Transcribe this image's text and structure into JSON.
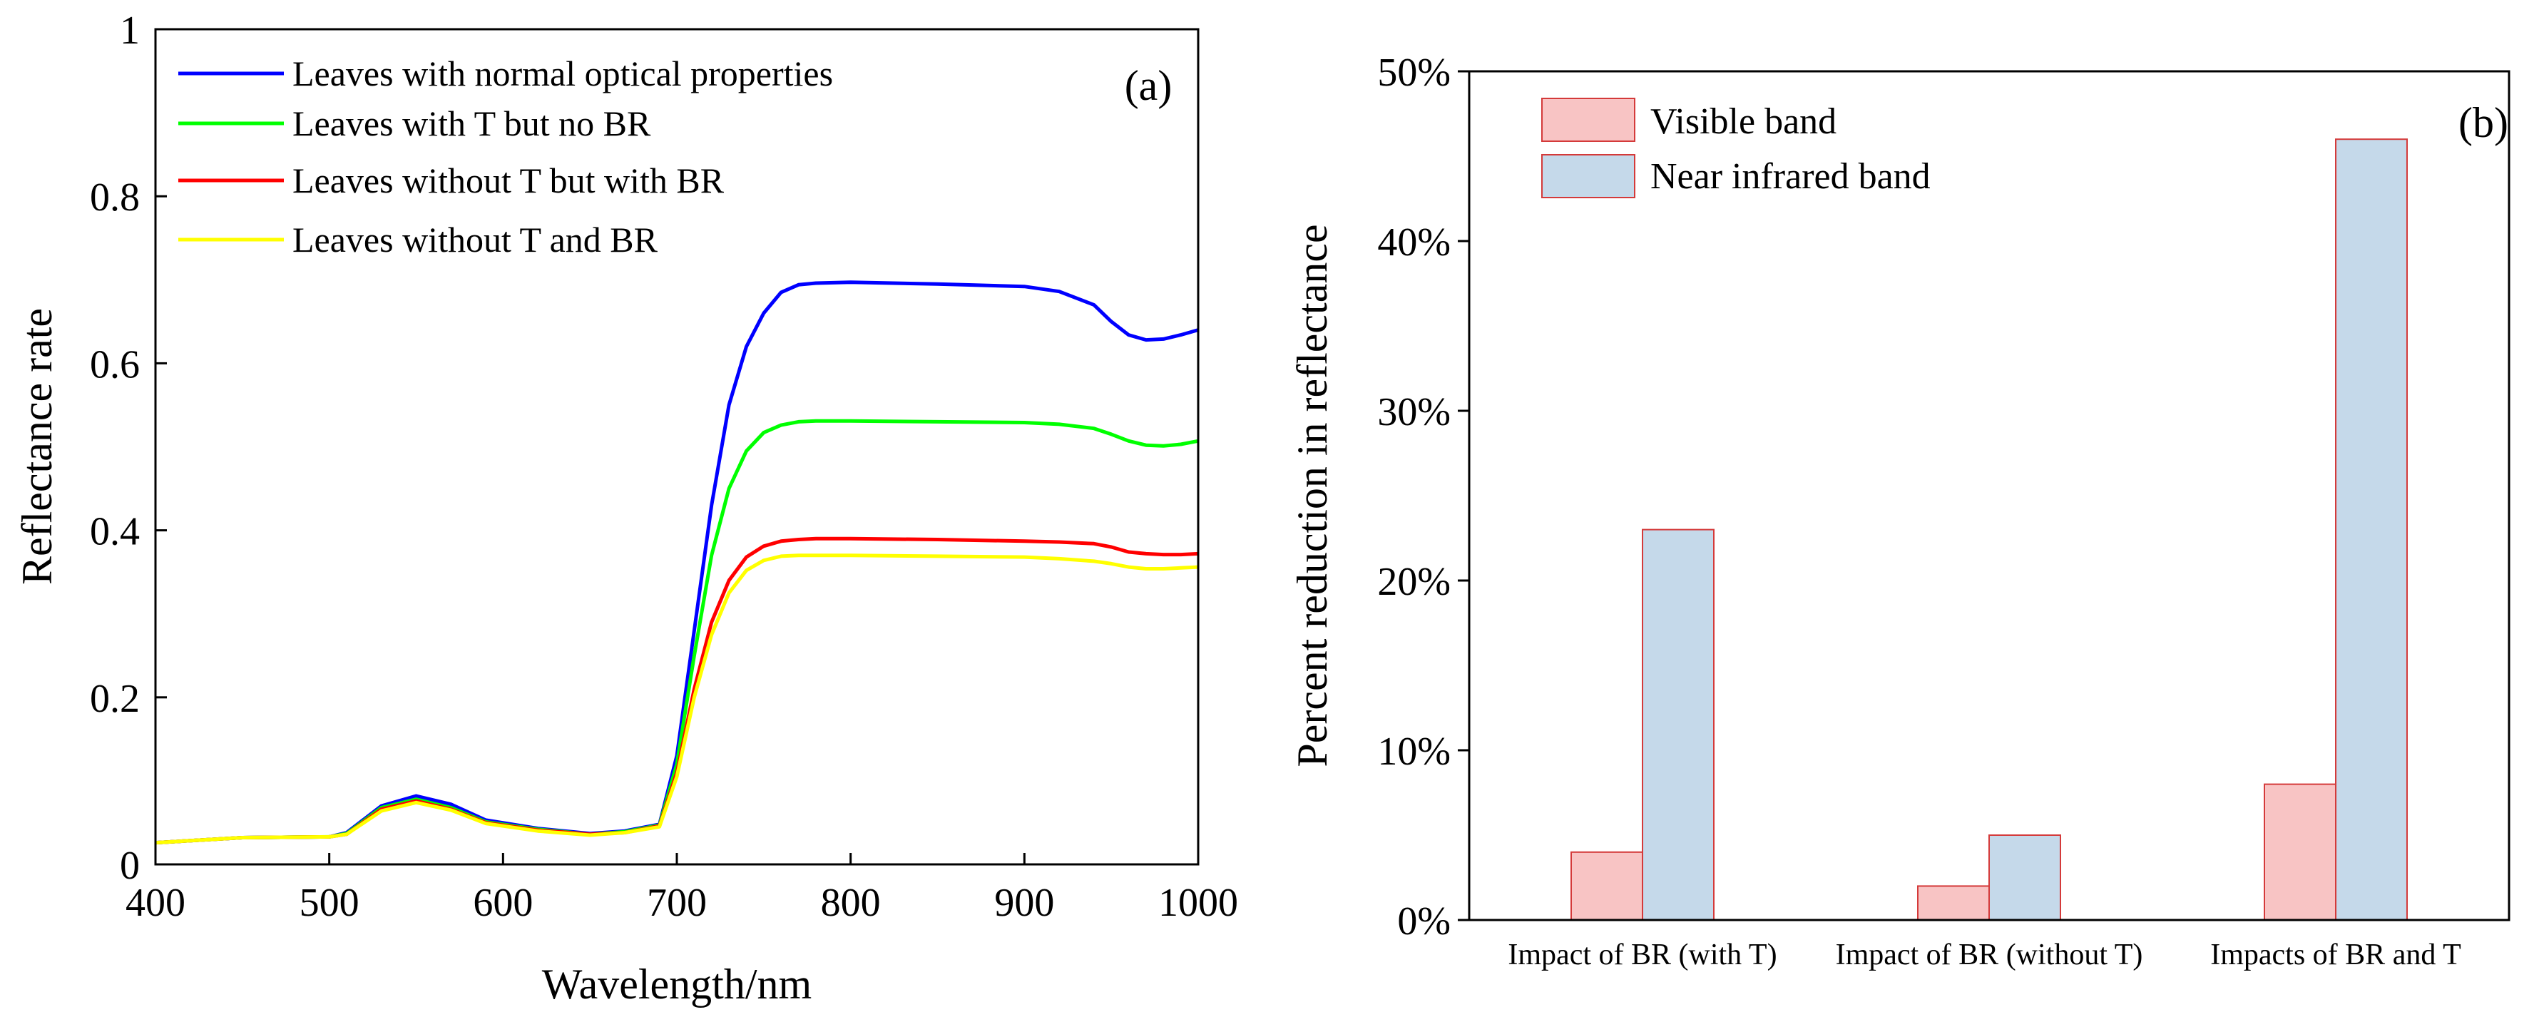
{
  "chart_data": [
    {
      "type": "line",
      "panel_label": "(a)",
      "title": "",
      "xlabel": "Wavelength/nm",
      "ylabel": "Reflectance rate",
      "xlim": [
        400,
        1000
      ],
      "ylim": [
        0,
        1
      ],
      "xticks": [
        400,
        500,
        600,
        700,
        800,
        900,
        1000
      ],
      "xtick_labels": [
        "400",
        "500",
        "600",
        "700",
        "800",
        "900",
        "1000"
      ],
      "yticks": [
        0,
        0.2,
        0.4,
        0.6,
        0.8,
        1
      ],
      "ytick_labels": [
        "0",
        "0.2",
        "0.4",
        "0.6",
        "0.8",
        "1"
      ],
      "grid": false,
      "legend_position": "top-left",
      "x": [
        400,
        450,
        500,
        510,
        530,
        550,
        570,
        590,
        620,
        650,
        670,
        690,
        700,
        710,
        720,
        730,
        740,
        750,
        760,
        770,
        780,
        800,
        850,
        900,
        920,
        940,
        950,
        960,
        970,
        980,
        990,
        1000
      ],
      "series": [
        {
          "name": "Leaves with normal optical properties",
          "color": "#0000ff",
          "values": [
            0.026,
            0.032,
            0.033,
            0.038,
            0.07,
            0.082,
            0.072,
            0.053,
            0.043,
            0.037,
            0.04,
            0.048,
            0.13,
            0.28,
            0.43,
            0.55,
            0.62,
            0.66,
            0.685,
            0.694,
            0.696,
            0.697,
            0.695,
            0.692,
            0.686,
            0.67,
            0.65,
            0.634,
            0.628,
            0.629,
            0.634,
            0.64
          ]
        },
        {
          "name": "Leaves with T but no BR",
          "color": "#00ff00",
          "values": [
            0.026,
            0.032,
            0.033,
            0.037,
            0.068,
            0.078,
            0.068,
            0.051,
            0.042,
            0.036,
            0.039,
            0.047,
            0.12,
            0.25,
            0.37,
            0.45,
            0.495,
            0.517,
            0.526,
            0.53,
            0.531,
            0.531,
            0.53,
            0.529,
            0.527,
            0.522,
            0.515,
            0.507,
            0.502,
            0.501,
            0.503,
            0.507
          ]
        },
        {
          "name": "Leaves without T but with BR",
          "color": "#ff0000",
          "values": [
            0.026,
            0.032,
            0.033,
            0.036,
            0.066,
            0.076,
            0.066,
            0.05,
            0.041,
            0.036,
            0.038,
            0.046,
            0.11,
            0.21,
            0.29,
            0.34,
            0.368,
            0.381,
            0.387,
            0.389,
            0.39,
            0.39,
            0.389,
            0.387,
            0.386,
            0.384,
            0.38,
            0.374,
            0.372,
            0.371,
            0.371,
            0.372
          ]
        },
        {
          "name": "Leaves without T and BR",
          "color": "#ffff00",
          "values": [
            0.026,
            0.032,
            0.033,
            0.036,
            0.064,
            0.074,
            0.065,
            0.049,
            0.04,
            0.035,
            0.038,
            0.045,
            0.105,
            0.2,
            0.275,
            0.325,
            0.352,
            0.364,
            0.369,
            0.37,
            0.37,
            0.37,
            0.369,
            0.368,
            0.366,
            0.363,
            0.36,
            0.356,
            0.354,
            0.354,
            0.355,
            0.356
          ]
        }
      ]
    },
    {
      "type": "bar",
      "panel_label": "(b)",
      "title": "",
      "xlabel": "",
      "ylabel": "Percent reduction in reflectance",
      "ylim": [
        0,
        50
      ],
      "yticks": [
        0,
        10,
        20,
        30,
        40,
        50
      ],
      "ytick_labels": [
        "0%",
        "10%",
        "20%",
        "30%",
        "40%",
        "50%"
      ],
      "grid": false,
      "legend_position": "top-left",
      "categories": [
        "Impact of BR (with T)",
        "Impact of BR (without T)",
        "Impacts of BR and T"
      ],
      "series": [
        {
          "name": "Visible band",
          "color": "#f8c4c4",
          "edge_color": "#d43a3a",
          "values": [
            4,
            2,
            8
          ]
        },
        {
          "name": "Near infrared band",
          "color": "#c5d9ea",
          "edge_color": "#d43a3a",
          "values": [
            23,
            5,
            46
          ]
        }
      ]
    }
  ]
}
